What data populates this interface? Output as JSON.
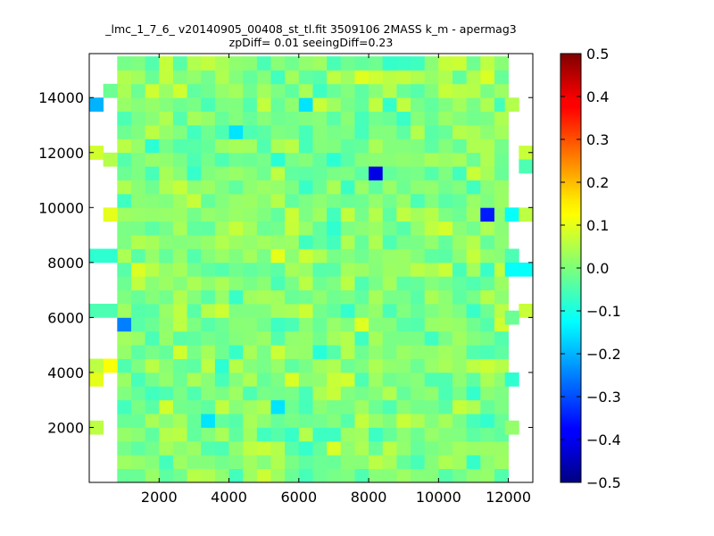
{
  "chart_data": {
    "type": "heatmap",
    "title": "_lmc_1_7_6_ v20140905_00408_st_tl.fit 3509106 2MASS k_m - apermag3",
    "subtitle": "zpDiff= 0.01 seeingDiff=0.23",
    "xlabel": "",
    "ylabel": "",
    "xlim": [
      0,
      12700
    ],
    "ylim": [
      0,
      15600
    ],
    "x_ticks": [
      2000,
      4000,
      6000,
      8000,
      10000,
      12000
    ],
    "y_ticks": [
      2000,
      4000,
      6000,
      8000,
      10000,
      12000,
      14000
    ],
    "x_tick_labels": [
      "2000",
      "4000",
      "6000",
      "8000",
      "10000",
      "12000"
    ],
    "y_tick_labels": [
      "2000",
      "4000",
      "6000",
      "8000",
      "10000",
      "12000",
      "14000"
    ],
    "colorbar": {
      "colormap": "jet",
      "vmin": -0.5,
      "vmax": 0.5,
      "ticks": [
        -0.5,
        -0.4,
        -0.3,
        -0.2,
        -0.1,
        0.0,
        0.1,
        0.2,
        0.3,
        0.4,
        0.5
      ],
      "tick_labels": [
        "−0.5",
        "−0.4",
        "−0.3",
        "−0.2",
        "−0.1",
        "0.0",
        "0.1",
        "0.2",
        "0.3",
        "0.4",
        "0.5"
      ]
    },
    "grid": false,
    "cell_width": 400,
    "cell_height": 500,
    "main_block": {
      "x_start": 800,
      "x_end": 11900,
      "y_start": 0,
      "y_end": 15500,
      "typical_value": 0.0
    },
    "notable_cells": [
      {
        "x": 8000,
        "y": 11000,
        "value": -0.4
      },
      {
        "x": 11200,
        "y": 9750,
        "value": -0.35
      },
      {
        "x": 1000,
        "y": 5500,
        "value": -0.25
      },
      {
        "x": 5200,
        "y": 2500,
        "value": -0.15
      },
      {
        "x": 3200,
        "y": 2000,
        "value": -0.15
      },
      {
        "x": 4200,
        "y": 12500,
        "value": -0.15
      },
      {
        "x": 6200,
        "y": 13500,
        "value": -0.15
      },
      {
        "x": 2000,
        "y": 2500,
        "value": 0.08
      },
      {
        "x": 5600,
        "y": 3500,
        "value": 0.09
      },
      {
        "x": 5300,
        "y": 8000,
        "value": 0.1
      },
      {
        "x": 11200,
        "y": 15200,
        "value": 0.06
      }
    ],
    "edge_cells": [
      {
        "x": 0,
        "y": 13500,
        "value": -0.2
      },
      {
        "x": 400,
        "y": 14000,
        "value": -0.02
      },
      {
        "x": 0,
        "y": 11750,
        "value": 0.08
      },
      {
        "x": 400,
        "y": 11500,
        "value": 0.05
      },
      {
        "x": 400,
        "y": 9500,
        "value": 0.1
      },
      {
        "x": 0,
        "y": 8000,
        "value": -0.08
      },
      {
        "x": 400,
        "y": 8000,
        "value": -0.08
      },
      {
        "x": 0,
        "y": 6000,
        "value": -0.05
      },
      {
        "x": 400,
        "y": 6000,
        "value": -0.05
      },
      {
        "x": 0,
        "y": 4000,
        "value": 0.06
      },
      {
        "x": 400,
        "y": 4000,
        "value": 0.12
      },
      {
        "x": 0,
        "y": 3500,
        "value": 0.1
      },
      {
        "x": 0,
        "y": 1750,
        "value": 0.06
      },
      {
        "x": 11900,
        "y": 13500,
        "value": 0.05
      },
      {
        "x": 12300,
        "y": 11750,
        "value": 0.07
      },
      {
        "x": 12300,
        "y": 11250,
        "value": -0.05
      },
      {
        "x": 11900,
        "y": 9500,
        "value": -0.12
      },
      {
        "x": 12300,
        "y": 9500,
        "value": 0.06
      },
      {
        "x": 11900,
        "y": 8000,
        "value": -0.05
      },
      {
        "x": 11900,
        "y": 7500,
        "value": -0.12
      },
      {
        "x": 12300,
        "y": 7500,
        "value": -0.12
      },
      {
        "x": 12300,
        "y": 6000,
        "value": 0.07
      },
      {
        "x": 11900,
        "y": 5750,
        "value": -0.02
      },
      {
        "x": 11900,
        "y": 3500,
        "value": -0.08
      },
      {
        "x": 11900,
        "y": 1750,
        "value": 0.02
      }
    ]
  }
}
